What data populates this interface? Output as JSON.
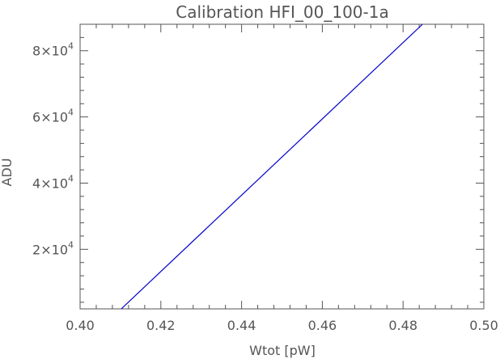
{
  "chart_data": {
    "type": "line",
    "title": "Calibration HFI_00_100-1a",
    "xlabel": "Wtot [pW]",
    "ylabel": "ADU",
    "xlim": [
      0.4,
      0.5
    ],
    "ylim": [
      2000,
      88000
    ],
    "x_ticks": [
      0.4,
      0.42,
      0.44,
      0.46,
      0.48,
      0.5
    ],
    "x_tick_labels": [
      "0.40",
      "0.42",
      "0.44",
      "0.46",
      "0.48",
      "0.50"
    ],
    "y_ticks": [
      20000,
      40000,
      60000,
      80000
    ],
    "y_tick_labels": [
      {
        "mantissa": "2",
        "times": "×",
        "base": "10",
        "exp": "4"
      },
      {
        "mantissa": "4",
        "times": "×",
        "base": "10",
        "exp": "4"
      },
      {
        "mantissa": "6",
        "times": "×",
        "base": "10",
        "exp": "4"
      },
      {
        "mantissa": "8",
        "times": "×",
        "base": "10",
        "exp": "4"
      }
    ],
    "grid": false,
    "series": [
      {
        "color": "#0000cc",
        "x": [
          0.4102,
          0.4848
        ],
        "y": [
          2000,
          88000
        ]
      }
    ]
  }
}
